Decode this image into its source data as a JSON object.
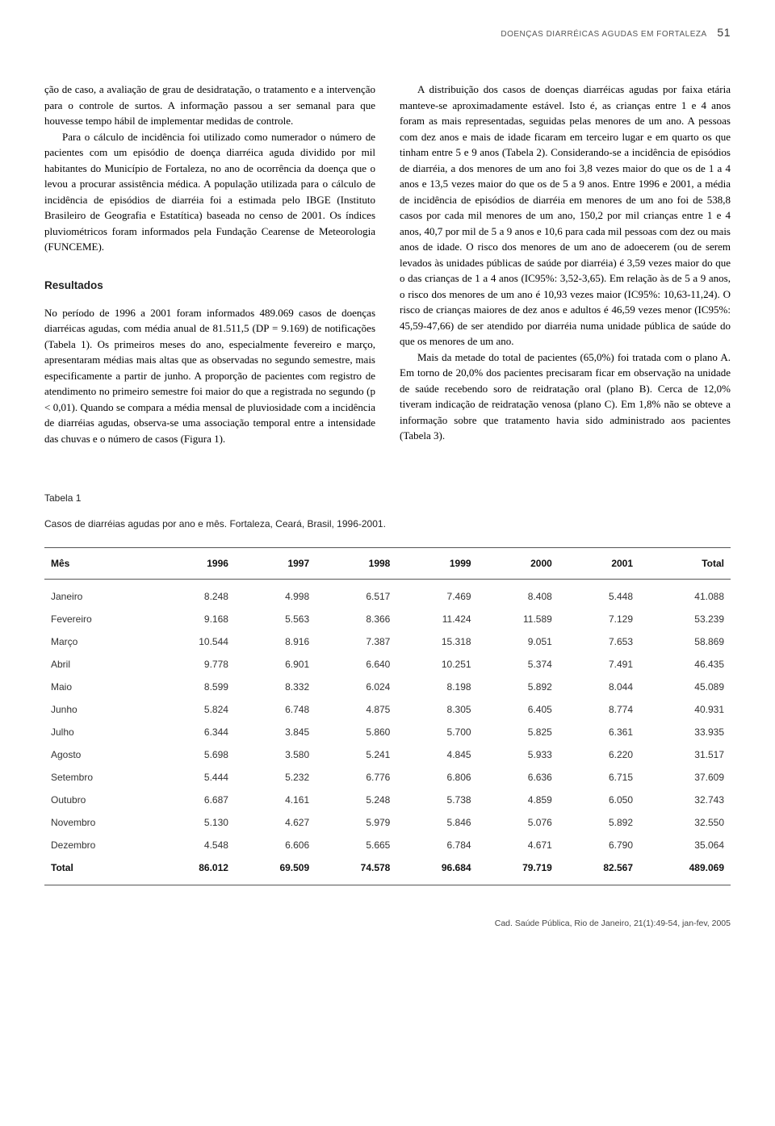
{
  "header": {
    "running_title": "DOENÇAS DIARRÉICAS AGUDAS EM FORTALEZA",
    "page_number": "51"
  },
  "left_column": {
    "para1": "ção de caso, a avaliação de grau de desidrata­ção, o tratamento e a intervenção para o con­trole de surtos. A informação passou a ser se­manal para que houvesse tempo hábil de im­plementar medidas de controle.",
    "para2": "Para o cálculo de incidência foi utilizado como numerador o número de pacientes com um episódio de doença diarréica aguda dividi­do por mil habitantes do Município de Fortale­za, no ano de ocorrência da doença que o levou a procurar assistência médica. A população utilizada para o cálculo de incidência de episó­dios de diarréia foi a estimada pelo IBGE (Insti­tuto Brasileiro de Geografia e Estatítica) basea­da no censo de 2001. Os índices pluviométricos foram informados pela Fundação Cearense de Meteorologia (FUNCEME).",
    "heading": "Resultados",
    "para3": "No período de 1996 a 2001 foram informados 489.069 casos de doenças diarréicas agudas, com média anual de 81.511,5 (DP = 9.169) de notifica­ções (Tabela 1). Os primeiros meses do ano, es­pecialmente fevereiro e março, apresentaram médias mais altas que as observadas no segundo semestre, mais especificamente a partir de ju­nho. A proporção de pacientes com registro de atendimento no primeiro semestre foi maior do que a registrada no segundo (p < 0,01). Quando se compara a média mensal de pluviosidade com a incidência de diarréias agudas, observa-se uma associação temporal entre a intensidade das chuvas e o número de casos (Figura 1)."
  },
  "right_column": {
    "para1": "A distribuição dos casos de doenças diar­réicas agudas por faixa etária manteve-se apro­ximadamente estável. Isto é, as crianças entre 1 e 4 anos foram as mais representadas, segui­das pelas menores de um ano. A pessoas com dez anos e mais de idade ficaram em terceiro lugar e em quarto os que tinham entre 5 e 9 anos (Tabela 2). Considerando-se a incidência de episódios de diarréia, a dos menores de um ano foi 3,8 vezes maior do que os de 1 a 4 anos e 13,5 vezes maior do que os de 5 a 9 anos. En­tre 1996 e 2001, a média de incidência de epi­sódios de diarréia em menores de um ano foi de 538,8 casos por cada mil menores de um ano, 150,2 por mil crianças entre 1 e 4 anos, 40,7 por mil de 5 a 9 anos e 10,6 para cada mil pes­soas com dez ou mais anos de idade. O risco dos menores de um ano de adoecerem (ou de serem levados às unidades públicas de saúde por diarréia) é 3,59 vezes maior do que o das crianças de 1 a 4 anos (IC95%: 3,52-3,65). Em relação às de 5 a 9 anos, o risco dos menores de um ano é 10,93 vezes maior (IC95%: 10,63-11,24). O risco de crianças maiores de dez anos e adul­tos é 46,59 vezes menor (IC95%: 45,59-47,66) de ser atendido por diarréia numa unidade pú­blica de saúde do que os menores de um ano.",
    "para2": "Mais da metade do total de pacientes (65,0%) foi tratada com o plano A. Em torno de 20,0% dos pacientes precisaram ficar em observação na unidade de saúde recebendo soro de reidratação oral (plano B). Cerca de 12,0% tiveram indicação de reidratação venosa (plano C). Em 1,8% não se obteve a informação sobre que tratamento havia sido administrado aos pacientes (Tabela 3)."
  },
  "table1": {
    "label": "Tabela 1",
    "caption": "Casos de diarréias agudas por ano e mês. Fortaleza, Ceará, Brasil, 1996-2001.",
    "columns": [
      "Mês",
      "1996",
      "1997",
      "1998",
      "1999",
      "2000",
      "2001",
      "Total"
    ],
    "rows": [
      [
        "Janeiro",
        "8.248",
        "4.998",
        "6.517",
        "7.469",
        "8.408",
        "5.448",
        "41.088"
      ],
      [
        "Fevereiro",
        "9.168",
        "5.563",
        "8.366",
        "11.424",
        "11.589",
        "7.129",
        "53.239"
      ],
      [
        "Março",
        "10.544",
        "8.916",
        "7.387",
        "15.318",
        "9.051",
        "7.653",
        "58.869"
      ],
      [
        "Abril",
        "9.778",
        "6.901",
        "6.640",
        "10.251",
        "5.374",
        "7.491",
        "46.435"
      ],
      [
        "Maio",
        "8.599",
        "8.332",
        "6.024",
        "8.198",
        "5.892",
        "8.044",
        "45.089"
      ],
      [
        "Junho",
        "5.824",
        "6.748",
        "4.875",
        "8.305",
        "6.405",
        "8.774",
        "40.931"
      ],
      [
        "Julho",
        "6.344",
        "3.845",
        "5.860",
        "5.700",
        "5.825",
        "6.361",
        "33.935"
      ],
      [
        "Agosto",
        "5.698",
        "3.580",
        "5.241",
        "4.845",
        "5.933",
        "6.220",
        "31.517"
      ],
      [
        "Setembro",
        "5.444",
        "5.232",
        "6.776",
        "6.806",
        "6.636",
        "6.715",
        "37.609"
      ],
      [
        "Outubro",
        "6.687",
        "4.161",
        "5.248",
        "5.738",
        "4.859",
        "6.050",
        "32.743"
      ],
      [
        "Novembro",
        "5.130",
        "4.627",
        "5.979",
        "5.846",
        "5.076",
        "5.892",
        "32.550"
      ],
      [
        "Dezembro",
        "4.548",
        "6.606",
        "5.665",
        "6.784",
        "4.671",
        "6.790",
        "35.064"
      ]
    ],
    "total_row": [
      "Total",
      "86.012",
      "69.509",
      "74.578",
      "96.684",
      "79.719",
      "82.567",
      "489.069"
    ]
  },
  "footer": {
    "citation": "Cad. Saúde Pública, Rio de Janeiro, 21(1):49-54, jan-fev, 2005"
  }
}
